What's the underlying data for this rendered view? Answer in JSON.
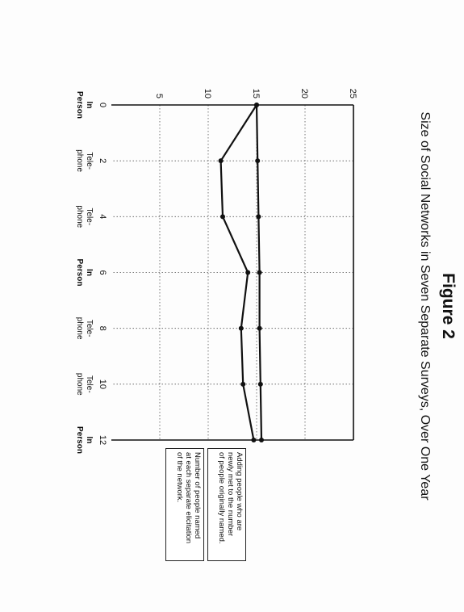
{
  "figure_label": "Figure 2",
  "chart_data": {
    "type": "line",
    "title": "Size of Social Networks in Seven Separate Surveys, Over One Year",
    "x": [
      0,
      2,
      4,
      6,
      8,
      10,
      12
    ],
    "x_tick_labels": [
      "0",
      "2",
      "4",
      "6",
      "8",
      "10",
      "12"
    ],
    "y_tick_labels": [
      "5",
      "10",
      "15",
      "20",
      "25"
    ],
    "xlim": [
      0,
      12
    ],
    "ylim": [
      0,
      25
    ],
    "grid": true,
    "legend_placement": "right",
    "categories": [
      [
        "In",
        "Person"
      ],
      [
        "Tele-",
        "phone"
      ],
      [
        "Tele-",
        "phone"
      ],
      [
        "In",
        "Person"
      ],
      [
        "Tele-",
        "phone"
      ],
      [
        "Tele-",
        "phone"
      ],
      [
        "In",
        "Person"
      ]
    ],
    "category_bold": [
      true,
      false,
      false,
      true,
      false,
      false,
      true
    ],
    "series": [
      {
        "values": [
          15,
          15.1,
          15.2,
          15.3,
          15.3,
          15.4,
          15.5
        ]
      },
      {
        "values": [
          15,
          11.3,
          11.5,
          14.1,
          13.4,
          13.6,
          14.7
        ]
      }
    ],
    "legend": [
      {
        "lines": [
          "Adding people who are",
          "newly met to the number",
          "of people originally named."
        ]
      },
      {
        "lines": [
          "Number of people named",
          "at each separate elicitation",
          "of the network."
        ]
      }
    ]
  }
}
